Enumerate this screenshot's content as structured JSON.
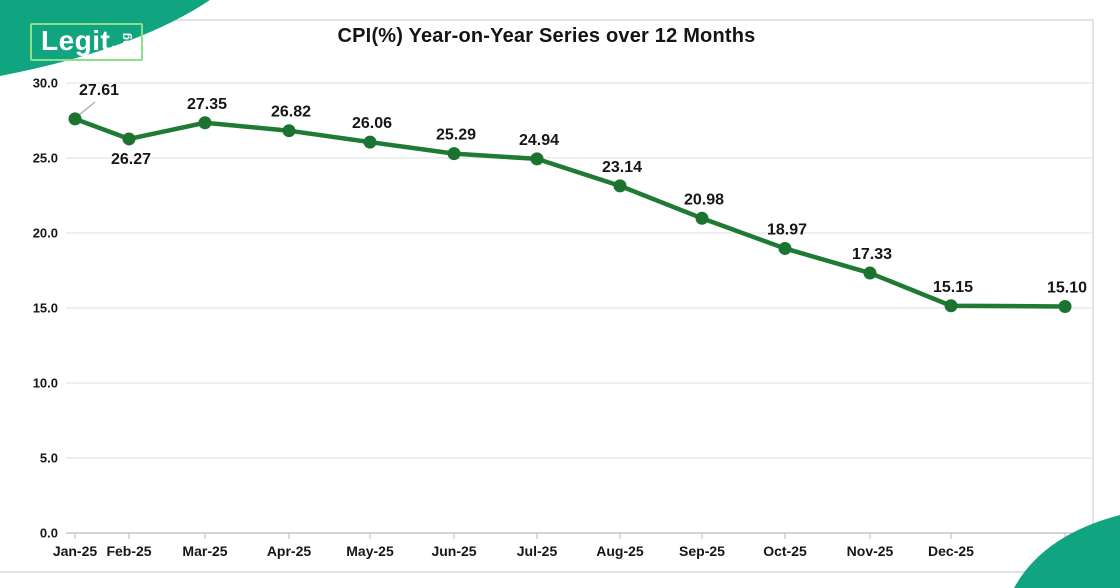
{
  "logo": {
    "main": "Legit.",
    "suffix": "ng"
  },
  "chart_data": {
    "type": "line",
    "title": "CPI(%) Year-on-Year Series over 12 Months",
    "categories": [
      "Jan-25",
      "Feb-25",
      "Mar-25",
      "Apr-25",
      "May-25",
      "Jun-25",
      "Jul-25",
      "Aug-25",
      "Sep-25",
      "Oct-25",
      "Nov-25",
      "Dec-25"
    ],
    "series": [
      {
        "name": "CPI (%) Year-on-Year",
        "values": [
          27.61,
          26.27,
          27.35,
          26.82,
          26.06,
          25.29,
          24.94,
          23.14,
          20.98,
          18.97,
          17.33,
          15.15,
          15.1
        ]
      }
    ],
    "xlabel": "",
    "ylabel": "",
    "ylim": [
      0,
      30
    ],
    "y_tick_step": 5,
    "y_tick_labels": [
      "0.0",
      "5.0",
      "10.0",
      "15.0",
      "20.0",
      "25.0",
      "30.0"
    ],
    "grid": true,
    "legend": false,
    "note": "13 data points; the 13th month label is hidden behind the bottom-right corner graphic",
    "colors": {
      "line": "#1F7B33",
      "marker": "#1C7330",
      "label_text": "#161616",
      "grid": "#E4E4E4",
      "axis": "#C6C6C6",
      "frame": "#DADADA",
      "leader": "#A8A8A8",
      "brand_green": "#10A480",
      "logo_outline": "#8BE08B"
    }
  }
}
